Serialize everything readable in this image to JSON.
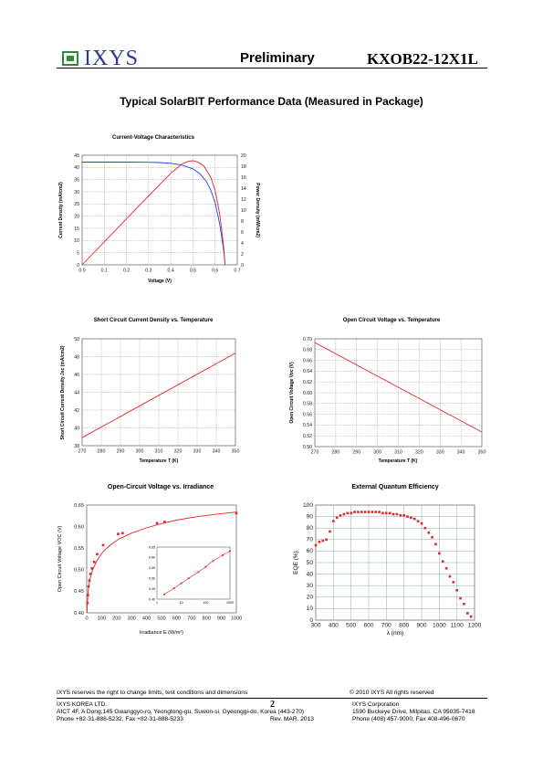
{
  "header": {
    "logo_text": "IXYS",
    "status": "Preliminary",
    "part_number": "KXOB22-12X1L",
    "brand_color": "#2e8b3a",
    "logo_color": "#2b3a8f"
  },
  "section_title": "Typical SolarBIT Performance Data (Measured in Package)",
  "chart_data": [
    {
      "id": "iv",
      "type": "line",
      "title": "Current-Voltage Characteristics",
      "xlabel": "Voltage (V)",
      "ylabel": "Current Density (mA/cm2)",
      "y2label": "Power Density (mW/cm2)",
      "xlim": [
        0,
        0.7
      ],
      "ylim": [
        0,
        45
      ],
      "y2lim": [
        0,
        20
      ],
      "xticks": [
        "0.0",
        "0.1",
        "0.2",
        "0.3",
        "0.4",
        "0.5",
        "0.6",
        "0.7"
      ],
      "yticks": [
        "0",
        "5",
        "10",
        "15",
        "20",
        "25",
        "30",
        "35",
        "40",
        "45"
      ],
      "y2ticks": [
        "0",
        "2",
        "4",
        "6",
        "8",
        "10",
        "12",
        "14",
        "16",
        "18",
        "20"
      ],
      "grid": true,
      "series": [
        {
          "axis": "left",
          "color": "#1f3fff",
          "x": [
            0,
            0.1,
            0.2,
            0.3,
            0.35,
            0.4,
            0.45,
            0.5,
            0.53,
            0.56,
            0.58,
            0.6,
            0.62,
            0.63,
            0.64,
            0.645
          ],
          "y": [
            42.2,
            42.2,
            42.2,
            42.1,
            42.0,
            41.7,
            41.0,
            39.4,
            37.5,
            34.3,
            30.8,
            25.5,
            17.0,
            11.3,
            5.0,
            0
          ]
        },
        {
          "axis": "right",
          "color": "#e8242a",
          "x": [
            0,
            0.1,
            0.2,
            0.3,
            0.4,
            0.45,
            0.48,
            0.5,
            0.52,
            0.55,
            0.58,
            0.6,
            0.62,
            0.63,
            0.64,
            0.645
          ],
          "y": [
            0,
            4.2,
            8.4,
            12.6,
            16.7,
            18.4,
            18.9,
            19.0,
            18.8,
            18.0,
            16.0,
            13.6,
            9.4,
            6.3,
            2.8,
            0
          ]
        }
      ]
    },
    {
      "id": "jsc",
      "type": "line",
      "title": "Short Circuit Current Density vs. Temperature",
      "xlabel": "Temperature T (K)",
      "ylabel": "Short Circuit Current Density Jsc (mA/cm2)",
      "xlim": [
        270,
        350
      ],
      "ylim": [
        38,
        50
      ],
      "xticks": [
        "270",
        "280",
        "290",
        "300",
        "310",
        "320",
        "330",
        "340",
        "350"
      ],
      "yticks": [
        "38",
        "40",
        "42",
        "44",
        "46",
        "48",
        "50"
      ],
      "grid": true,
      "series": [
        {
          "color": "#e8242a",
          "x": [
            270,
            350
          ],
          "y": [
            38.9,
            48.4
          ]
        }
      ]
    },
    {
      "id": "voc_t",
      "type": "line",
      "title": "Open Circuit Voltage vs. Temperature",
      "xlabel": "Temperature T (K)",
      "ylabel": "Open Circuit Voltage Voc (V)",
      "xlim": [
        270,
        350
      ],
      "ylim": [
        0.5,
        0.7
      ],
      "xticks": [
        "270",
        "280",
        "290",
        "300",
        "310",
        "320",
        "330",
        "340",
        "350"
      ],
      "yticks": [
        "0.50",
        "0.52",
        "0.54",
        "0.56",
        "0.58",
        "0.60",
        "0.62",
        "0.64",
        "0.66",
        "0.68",
        "0.70"
      ],
      "grid": true,
      "series": [
        {
          "color": "#e8242a",
          "x": [
            270,
            350
          ],
          "y": [
            0.693,
            0.527
          ]
        }
      ]
    },
    {
      "id": "voc_e",
      "type": "scatter",
      "title": "Open-Circuit Voltage vs. Irradiance",
      "xlabel": "Irradiance E (W/m²)",
      "ylabel": "Open Circuit Voltage VOC (V)",
      "xlim": [
        0,
        1000
      ],
      "ylim": [
        0.4,
        0.65
      ],
      "xticks": [
        "0",
        "100",
        "200",
        "300",
        "400",
        "500",
        "600",
        "700",
        "800",
        "900",
        "1000"
      ],
      "yticks": [
        "0.40",
        "0.45",
        "0.50",
        "0.55",
        "0.60",
        "0.65"
      ],
      "grid": false,
      "color": "#e8242a",
      "points": {
        "x": [
          5,
          8,
          12,
          18,
          25,
          35,
          50,
          70,
          110,
          210,
          240,
          470,
          520,
          1000
        ],
        "y": [
          0.423,
          0.441,
          0.461,
          0.475,
          0.49,
          0.503,
          0.518,
          0.536,
          0.557,
          0.583,
          0.585,
          0.608,
          0.611,
          0.631
        ]
      },
      "fit": {
        "x": [
          2,
          5,
          10,
          20,
          40,
          70,
          110,
          160,
          220,
          300,
          400,
          500,
          600,
          700,
          800,
          900,
          1000
        ],
        "y": [
          0.4,
          0.423,
          0.452,
          0.476,
          0.5,
          0.522,
          0.542,
          0.558,
          0.572,
          0.585,
          0.597,
          0.607,
          0.615,
          0.621,
          0.626,
          0.63,
          0.634
        ]
      },
      "inset": {
        "type": "scatter",
        "xscale": "log",
        "xlim": [
          1,
          1000
        ],
        "ylim": [
          0.4,
          0.65
        ],
        "xticks": [
          "1",
          "10",
          "100",
          "1000"
        ],
        "yticks": [
          "0.40",
          "0.45",
          "0.50",
          "0.55",
          "0.60",
          "0.65"
        ],
        "points": {
          "x": [
            2,
            5,
            10,
            20,
            50,
            100,
            200,
            500,
            1000
          ],
          "y": [
            0.423,
            0.452,
            0.476,
            0.5,
            0.53,
            0.555,
            0.583,
            0.611,
            0.631
          ]
        }
      }
    },
    {
      "id": "eqe",
      "type": "scatter",
      "title": "External Quantum Efficiency",
      "xlabel": "λ (nm)",
      "ylabel": "EQE (%)",
      "xlim": [
        300,
        1200
      ],
      "ylim": [
        0,
        100
      ],
      "xticks": [
        "300",
        "400",
        "500",
        "600",
        "700",
        "800",
        "900",
        "1000",
        "1100",
        "1200"
      ],
      "yticks": [
        "0",
        "10",
        "20",
        "30",
        "40",
        "50",
        "60",
        "70",
        "80",
        "90",
        "100"
      ],
      "grid": true,
      "color": "#e8242a",
      "points": {
        "x": [
          300,
          320,
          340,
          360,
          380,
          400,
          420,
          440,
          460,
          480,
          500,
          520,
          540,
          560,
          580,
          600,
          620,
          640,
          660,
          680,
          700,
          720,
          740,
          760,
          780,
          800,
          820,
          840,
          860,
          880,
          900,
          920,
          940,
          960,
          980,
          1000,
          1020,
          1040,
          1060,
          1080,
          1100,
          1120,
          1140,
          1160,
          1180
        ],
        "y": [
          65,
          68,
          69,
          70,
          77,
          86,
          89,
          91,
          92,
          93,
          93,
          94,
          94,
          94,
          94,
          94,
          94,
          94,
          94,
          93,
          93,
          93,
          92,
          92,
          91,
          91,
          90,
          89,
          88,
          86,
          84,
          80,
          76,
          72,
          66,
          58,
          51,
          45,
          38,
          33,
          26,
          19,
          14,
          6,
          3
        ]
      }
    }
  ],
  "footer": {
    "disclaimer": "IXYS reserves the right to change limits, test conditions and dimensions",
    "copyright": "© 2010 IXYS All rights reserved",
    "page": "2",
    "left_company": "IXYS KOREA LTD.",
    "left_address": "AICT 4F, A Dong,145 Gwanggyo-ro, Yeongtong-gu, Suwon-si, Gyeonggi-do, Korea (443-270)",
    "left_phone": "Phone +82-31-888-5232, Fax +82-31-888-5233",
    "revision": "Rev. MAR. 2013",
    "right_company": "IXYS Corporation",
    "right_address": "1590 Buckeye Drive, Milpitas, CA 95035-7418",
    "right_phone": "Phone (408) 457-9000, Fax 408-496-0670"
  }
}
